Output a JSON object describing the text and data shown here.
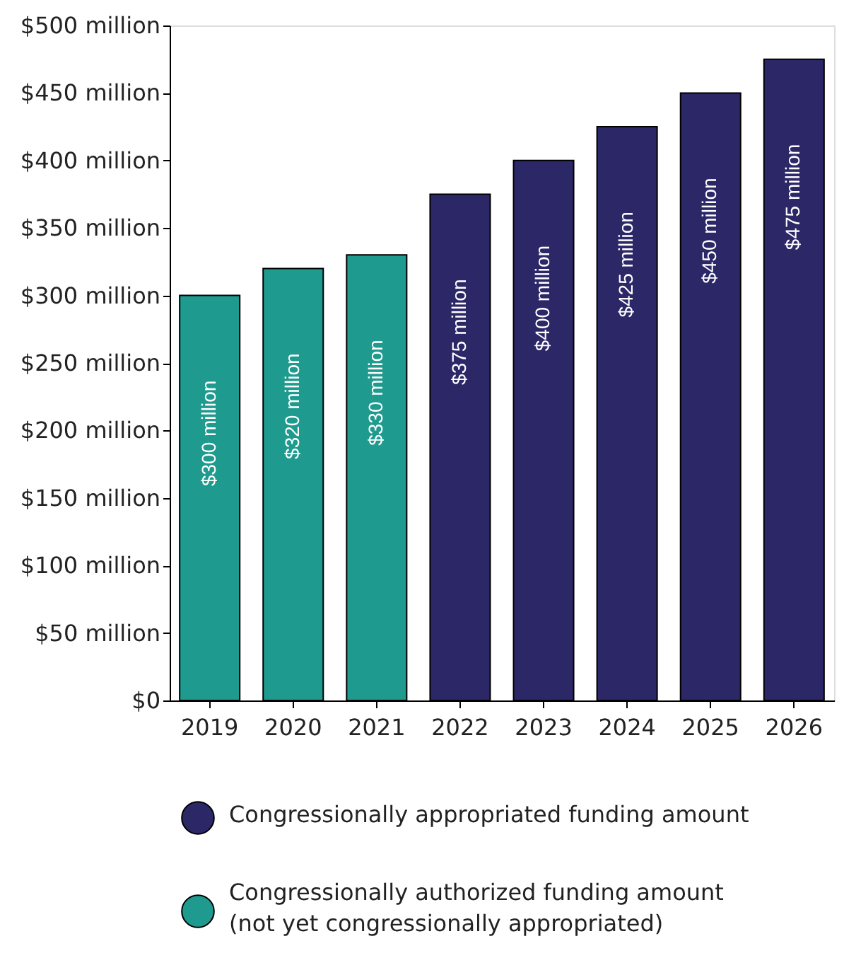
{
  "chart_data": {
    "type": "bar",
    "categories": [
      "2019",
      "2020",
      "2021",
      "2022",
      "2023",
      "2024",
      "2025",
      "2026"
    ],
    "series": [
      {
        "name": "Congressionally appropriated funding amount",
        "color": "#2c2767",
        "values": [
          null,
          null,
          null,
          375,
          400,
          425,
          450,
          475
        ],
        "value_labels": [
          null,
          null,
          null,
          "$375 million",
          "$400 million",
          "$425 million",
          "$450 million",
          "$475 million"
        ]
      },
      {
        "name": "Congressionally authorized funding amount\n(not yet congressionally appropriated)",
        "color": "#1f9a8e",
        "values": [
          300,
          320,
          330,
          null,
          null,
          null,
          null,
          null
        ],
        "value_labels": [
          "$300 million",
          "$320 million",
          "$330 million",
          null,
          null,
          null,
          null,
          null
        ]
      }
    ],
    "ylim": [
      0,
      500
    ],
    "yticks": [
      {
        "value": 0,
        "label": "$0"
      },
      {
        "value": 50,
        "label": "$50 million"
      },
      {
        "value": 100,
        "label": "$100 million"
      },
      {
        "value": 150,
        "label": "$150 million"
      },
      {
        "value": 200,
        "label": "$200 million"
      },
      {
        "value": 250,
        "label": "$250 million"
      },
      {
        "value": 300,
        "label": "$300 million"
      },
      {
        "value": 350,
        "label": "$350 million"
      },
      {
        "value": 400,
        "label": "$400 million"
      },
      {
        "value": 450,
        "label": "$450 million"
      },
      {
        "value": 500,
        "label": "$500 million"
      }
    ],
    "grid": false,
    "legend": "bottom"
  }
}
